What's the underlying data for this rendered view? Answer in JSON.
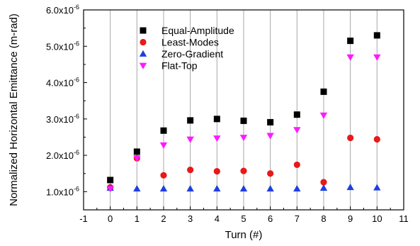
{
  "chart_data": {
    "type": "scatter",
    "title": "",
    "xlabel": "Turn (#)",
    "ylabel": "Normalized Horizontal Emittance (m-rad)",
    "xlim": [
      -1,
      11
    ],
    "ylim": [
      5e-07,
      6e-06
    ],
    "x_ticks": [
      -1,
      0,
      1,
      2,
      3,
      4,
      5,
      6,
      7,
      8,
      9,
      10,
      11
    ],
    "x_tick_labels": [
      "-1",
      "0",
      "1",
      "2",
      "3",
      "4",
      "5",
      "6",
      "7",
      "8",
      "9",
      "10",
      "11"
    ],
    "y_ticks": [
      1e-06,
      2e-06,
      3e-06,
      4e-06,
      5e-06,
      6e-06
    ],
    "y_tick_labels": [
      {
        "mantissa": "1.0x10",
        "exp": "-6"
      },
      {
        "mantissa": "2.0x10",
        "exp": "-6"
      },
      {
        "mantissa": "3.0x10",
        "exp": "-6"
      },
      {
        "mantissa": "4.0x10",
        "exp": "-6"
      },
      {
        "mantissa": "5.0x10",
        "exp": "-6"
      },
      {
        "mantissa": "6.0x10",
        "exp": "-6"
      }
    ],
    "grid": "vertical",
    "legend_position": "top-left",
    "x": [
      0,
      1,
      2,
      3,
      4,
      5,
      6,
      7,
      8,
      9,
      10
    ],
    "series": [
      {
        "name": "Equal-Amplitude",
        "marker": "square",
        "color": "#000000",
        "values": [
          1.32e-06,
          2.1e-06,
          2.68e-06,
          2.96e-06,
          3e-06,
          2.95e-06,
          2.91e-06,
          3.12e-06,
          3.75e-06,
          5.15e-06,
          5.3e-06
        ]
      },
      {
        "name": "Least-Modes",
        "marker": "circle",
        "color": "#e8191a",
        "values": [
          1.12e-06,
          1.92e-06,
          1.45e-06,
          1.6e-06,
          1.56e-06,
          1.57e-06,
          1.5e-06,
          1.74e-06,
          1.26e-06,
          2.48e-06,
          2.44e-06
        ]
      },
      {
        "name": "Zero-Gradient",
        "marker": "triangle-up",
        "color": "#1f3fe0",
        "values": [
          1.1e-06,
          1.08e-06,
          1.08e-06,
          1.08e-06,
          1.08e-06,
          1.08e-06,
          1.08e-06,
          1.08e-06,
          1.1e-06,
          1.12e-06,
          1.11e-06
        ]
      },
      {
        "name": "Flat-Top",
        "marker": "triangle-down",
        "color": "#ff1aff",
        "values": [
          1.08e-06,
          1.92e-06,
          2.28e-06,
          2.44e-06,
          2.47e-06,
          2.49e-06,
          2.54e-06,
          2.7e-06,
          3.1e-06,
          4.7e-06,
          4.7e-06
        ]
      }
    ]
  }
}
